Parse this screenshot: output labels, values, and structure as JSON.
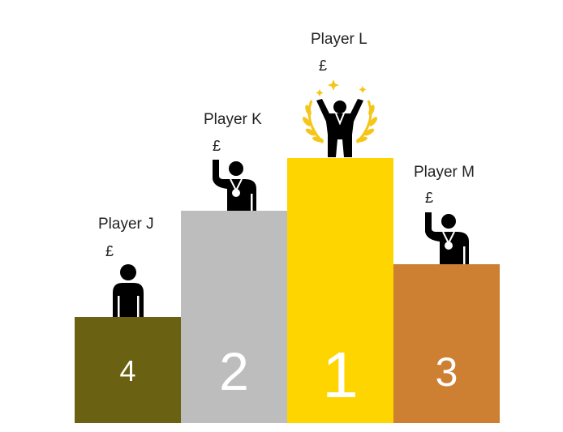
{
  "colors": {
    "fourth": "#6b6112",
    "second": "#bdbdbd",
    "first": "#ffd500",
    "third": "#cd7f32",
    "figure": "#000000",
    "laurel": "#f5c518"
  },
  "podium": [
    {
      "place": "4",
      "player": "Player J",
      "currency": "£",
      "icon": "person-icon"
    },
    {
      "place": "2",
      "player": "Player K",
      "currency": "£",
      "icon": "person-waving-medal-icon"
    },
    {
      "place": "1",
      "player": "Player L",
      "currency": "£",
      "icon": "person-celebrating-laurel-icon"
    },
    {
      "place": "3",
      "player": "Player M",
      "currency": "£",
      "icon": "person-waving-medal-icon"
    }
  ]
}
